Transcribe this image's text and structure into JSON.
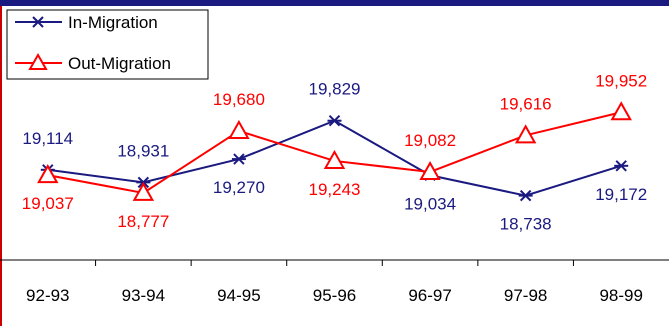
{
  "chart_data": {
    "type": "line",
    "categories": [
      "92-93",
      "93-94",
      "94-95",
      "95-96",
      "96-97",
      "97-98",
      "98-99"
    ],
    "series": [
      {
        "name": "In-Migration",
        "values": [
          19114,
          18931,
          19270,
          19829,
          19034,
          18738,
          19172
        ],
        "labels": [
          "19,114",
          "18,931",
          "19,270",
          "19,829",
          "19,034",
          "18,738",
          "19,172"
        ],
        "label_pos": [
          "above",
          "above",
          "below",
          "above",
          "below",
          "below",
          "below"
        ],
        "color": "#1a1a80",
        "marker": "asterisk"
      },
      {
        "name": "Out-Migration",
        "values": [
          19037,
          18777,
          19680,
          19243,
          19082,
          19616,
          19952
        ],
        "labels": [
          "19,037",
          "18,777",
          "19,680",
          "19,243",
          "19,082",
          "19,616",
          "19,952"
        ],
        "label_pos": [
          "below",
          "below",
          "above",
          "below",
          "above",
          "above",
          "above"
        ],
        "color": "#ff0000",
        "marker": "triangle"
      }
    ],
    "ylim": [
      17800,
      21500
    ],
    "legend_position": "top-left",
    "grid": false,
    "frame_color": "#cc0000",
    "top_band_color": "#1a1a80"
  }
}
